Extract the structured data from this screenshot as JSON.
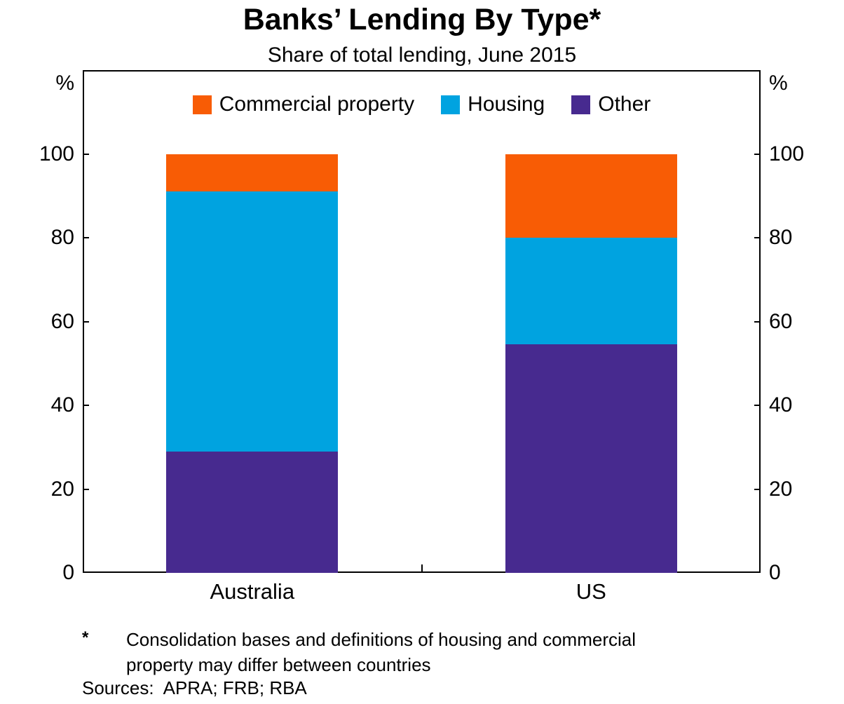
{
  "title": "Banks’ Lending By Type*",
  "subtitle": "Share of total lending, June 2015",
  "axis": {
    "unit_left": "%",
    "unit_right": "%"
  },
  "footnote": {
    "marker": "*",
    "lines": [
      "Consolidation bases and definitions of housing and commercial",
      "property may differ between countries"
    ]
  },
  "sources": "Sources:  APRA; FRB; RBA",
  "chart_data": {
    "type": "bar",
    "stacked": true,
    "title": "Banks’ Lending By Type*",
    "subtitle": "Share of total lending, June 2015",
    "categories": [
      "Australia",
      "US"
    ],
    "series": [
      {
        "name": "Commercial property",
        "color": "#F85C05",
        "values": [
          9,
          20
        ]
      },
      {
        "name": "Housing",
        "color": "#00A3E0",
        "values": [
          62,
          25.5
        ]
      },
      {
        "name": "Other",
        "color": "#472A8F",
        "values": [
          29,
          54.5
        ]
      }
    ],
    "ylabel": "%",
    "ylim": [
      0,
      120
    ],
    "yticks": [
      0,
      20,
      40,
      60,
      80,
      100
    ],
    "grid": false,
    "legend_position": "top-center"
  }
}
